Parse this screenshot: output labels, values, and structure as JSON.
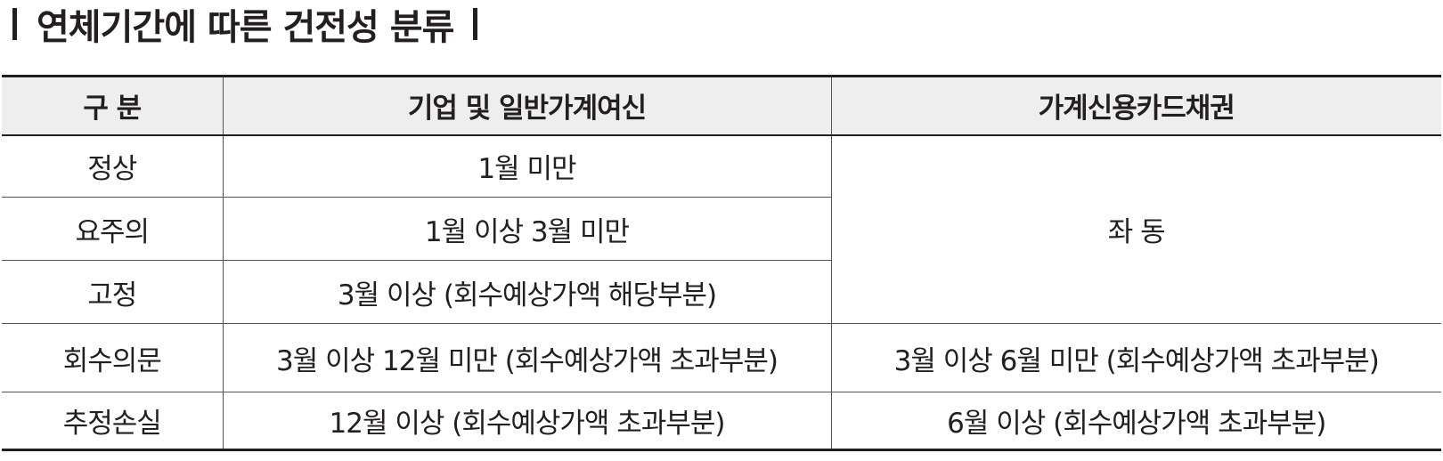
{
  "title": "연체기간에 따른 건전성 분류",
  "table": {
    "headers": [
      "구 분",
      "기업 및 일반가계여신",
      "가계신용카드채권"
    ],
    "rows": [
      {
        "category": "정상",
        "corporate_household": "1월 미만"
      },
      {
        "category": "요주의",
        "corporate_household": "1월 이상 3월 미만"
      },
      {
        "category": "고정",
        "corporate_household": "3월 이상 (회수예상가액 해당부분)"
      },
      {
        "category": "회수의문",
        "corporate_household": "3월 이상 12월 미만 (회수예상가액 초과부분)",
        "credit_card": "3월 이상 6월 미만 (회수예상가액 초과부분)"
      },
      {
        "category": "추정손실",
        "corporate_household": "12월 이상 (회수예상가액 초과부분)",
        "credit_card": "6월 이상 (회수예상가액 초과부분)"
      }
    ],
    "merged_credit_card_text": "좌 동"
  },
  "colors": {
    "header_background": "#eeeeee",
    "text": "#231f20",
    "rule": "#231f20"
  }
}
